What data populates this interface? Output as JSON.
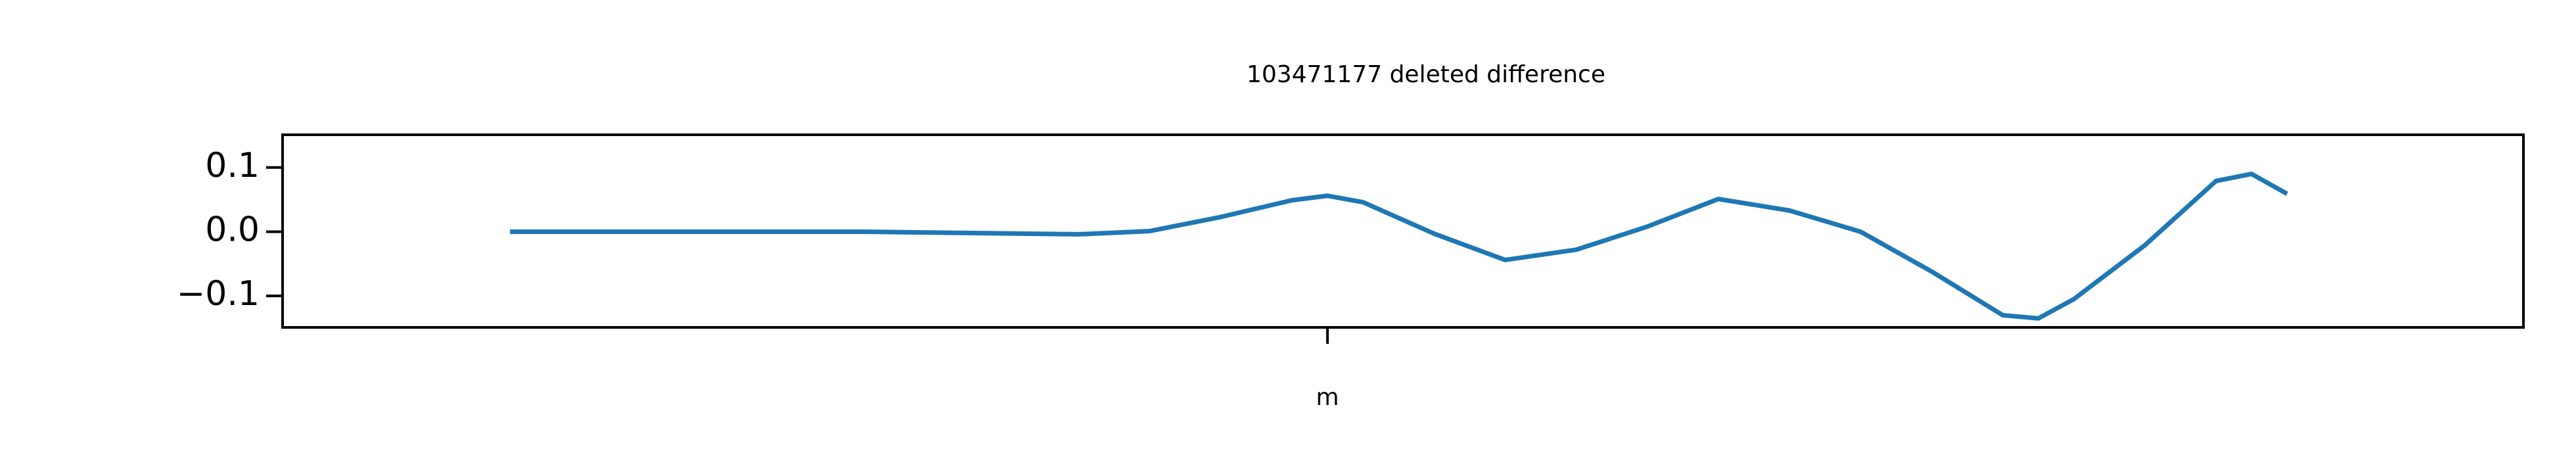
{
  "chart_data": {
    "type": "line",
    "title": "103471177 deleted difference",
    "x": [
      0,
      20,
      32,
      36,
      40,
      44,
      46,
      48,
      52,
      56,
      60,
      64,
      68,
      72,
      76,
      80,
      84,
      86,
      88,
      92,
      96,
      98,
      100
    ],
    "series": [
      {
        "color": "#1f77b4",
        "values": [
          0,
          0,
          -0.004,
          0.001,
          0.023,
          0.049,
          0.056,
          0.046,
          -0.003,
          -0.044,
          -0.028,
          0.008,
          0.051,
          0.033,
          0,
          -0.062,
          -0.13,
          -0.135,
          -0.105,
          -0.021,
          0.079,
          0.09,
          0.059
        ]
      }
    ],
    "xlim": [
      -12.8,
      113.3
    ],
    "xticks": [
      {
        "value": 46,
        "label": "m"
      }
    ],
    "ylim": [
      -0.149,
      0.151
    ],
    "yticks": [
      {
        "value": -0.1,
        "label": "−0.1"
      },
      {
        "value": 0,
        "label": "0.0"
      },
      0.1
    ]
  }
}
